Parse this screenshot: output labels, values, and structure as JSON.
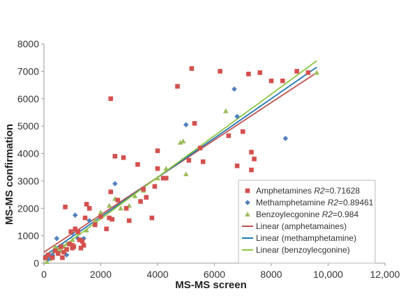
{
  "chart_data": {
    "type": "scatter",
    "xlabel": "MS-MS screen",
    "ylabel": "MS-MS confirmation",
    "xlim": [
      0,
      12000
    ],
    "ylim": [
      0,
      8000
    ],
    "x_ticks": [
      "0",
      "2000",
      "4000",
      "6000",
      "8000",
      "10,000",
      "12,000"
    ],
    "y_ticks": [
      "0",
      "1000",
      "2000",
      "3000",
      "4000",
      "5000",
      "6000",
      "7000",
      "8000"
    ],
    "x_tick_values": [
      0,
      2000,
      4000,
      6000,
      8000,
      10000,
      12000
    ],
    "y_tick_values": [
      0,
      1000,
      2000,
      3000,
      4000,
      5000,
      6000,
      7000,
      8000
    ],
    "grid": false,
    "legend_position": "bottom-right",
    "series": [
      {
        "name": "Amphetamines",
        "r2_label": "R2",
        "r2_value": "=0.71628",
        "marker": "square",
        "color": "#d4504d",
        "points": [
          [
            50,
            200
          ],
          [
            150,
            300
          ],
          [
            300,
            200
          ],
          [
            400,
            450
          ],
          [
            500,
            350
          ],
          [
            600,
            600
          ],
          [
            650,
            200
          ],
          [
            700,
            400
          ],
          [
            750,
            2050
          ],
          [
            800,
            500
          ],
          [
            900,
            700
          ],
          [
            950,
            1150
          ],
          [
            1000,
            650
          ],
          [
            1000,
            550
          ],
          [
            1050,
            600
          ],
          [
            1100,
            1250
          ],
          [
            1200,
            1150
          ],
          [
            1250,
            850
          ],
          [
            1300,
            550
          ],
          [
            1350,
            800
          ],
          [
            1400,
            650
          ],
          [
            1450,
            1650
          ],
          [
            1500,
            2150
          ],
          [
            1600,
            2000
          ],
          [
            1800,
            1400
          ],
          [
            2000,
            1700
          ],
          [
            2200,
            1250
          ],
          [
            2300,
            1650
          ],
          [
            2350,
            2600
          ],
          [
            2350,
            6000
          ],
          [
            2400,
            1600
          ],
          [
            2500,
            3900
          ],
          [
            2600,
            2300
          ],
          [
            2800,
            3850
          ],
          [
            2900,
            2000
          ],
          [
            3000,
            1550
          ],
          [
            3300,
            3600
          ],
          [
            3400,
            2250
          ],
          [
            3500,
            2700
          ],
          [
            3600,
            2400
          ],
          [
            3800,
            1650
          ],
          [
            3900,
            2800
          ],
          [
            4000,
            3450
          ],
          [
            4000,
            4100
          ],
          [
            4200,
            3100
          ],
          [
            4300,
            3100
          ],
          [
            4700,
            6450
          ],
          [
            5100,
            3750
          ],
          [
            5200,
            7100
          ],
          [
            5300,
            5100
          ],
          [
            5500,
            4200
          ],
          [
            5600,
            3700
          ],
          [
            6200,
            7000
          ],
          [
            6500,
            4650
          ],
          [
            6800,
            3550
          ],
          [
            7000,
            4800
          ],
          [
            7200,
            6900
          ],
          [
            7300,
            4050
          ],
          [
            7300,
            3400
          ],
          [
            7400,
            3800
          ],
          [
            7600,
            6950
          ],
          [
            8000,
            6650
          ],
          [
            8400,
            6650
          ],
          [
            8900,
            7000
          ],
          [
            9300,
            6950
          ]
        ]
      },
      {
        "name": "Methamphetamine",
        "r2_label": "R2",
        "r2_value": "=0.89461",
        "marker": "diamond",
        "color": "#4f81bd",
        "points": [
          [
            150,
            150
          ],
          [
            300,
            300
          ],
          [
            450,
            900
          ],
          [
            600,
            600
          ],
          [
            800,
            300
          ],
          [
            1000,
            1100
          ],
          [
            1100,
            1750
          ],
          [
            1200,
            900
          ],
          [
            1400,
            900
          ],
          [
            1600,
            1550
          ],
          [
            2500,
            2900
          ],
          [
            5000,
            5050
          ],
          [
            6700,
            6350
          ],
          [
            6800,
            5350
          ],
          [
            8500,
            4550
          ]
        ]
      },
      {
        "name": "Benzoylecgonine",
        "r2_label": "R2",
        "r2_value": "=0.984",
        "marker": "triangle",
        "color": "#9bbb59",
        "points": [
          [
            100,
            50
          ],
          [
            200,
            150
          ],
          [
            300,
            350
          ],
          [
            400,
            600
          ],
          [
            500,
            500
          ],
          [
            600,
            450
          ],
          [
            700,
            600
          ],
          [
            800,
            700
          ],
          [
            1000,
            850
          ],
          [
            1200,
            1100
          ],
          [
            1500,
            1200
          ],
          [
            1800,
            1550
          ],
          [
            2000,
            1850
          ],
          [
            2300,
            2100
          ],
          [
            2500,
            2350
          ],
          [
            2700,
            2000
          ],
          [
            3000,
            2100
          ],
          [
            3200,
            2450
          ],
          [
            3500,
            2650
          ],
          [
            4000,
            3100
          ],
          [
            4300,
            3450
          ],
          [
            4800,
            4400
          ],
          [
            4900,
            4450
          ],
          [
            5000,
            3250
          ],
          [
            6400,
            5550
          ],
          [
            9600,
            6950
          ]
        ]
      }
    ],
    "trendlines": [
      {
        "name": "Linear (amphetamaines)",
        "color": "#c0504d",
        "x": [
          0,
          9600
        ],
        "y": [
          400,
          6950
        ]
      },
      {
        "name": "Linear (methamphetamine)",
        "color": "#1f77b4",
        "x": [
          0,
          9600
        ],
        "y": [
          250,
          7150
        ]
      },
      {
        "name": "Linear (benzoylecgonine)",
        "color": "#8cc63f",
        "x": [
          0,
          9600
        ],
        "y": [
          100,
          7380
        ]
      }
    ]
  }
}
